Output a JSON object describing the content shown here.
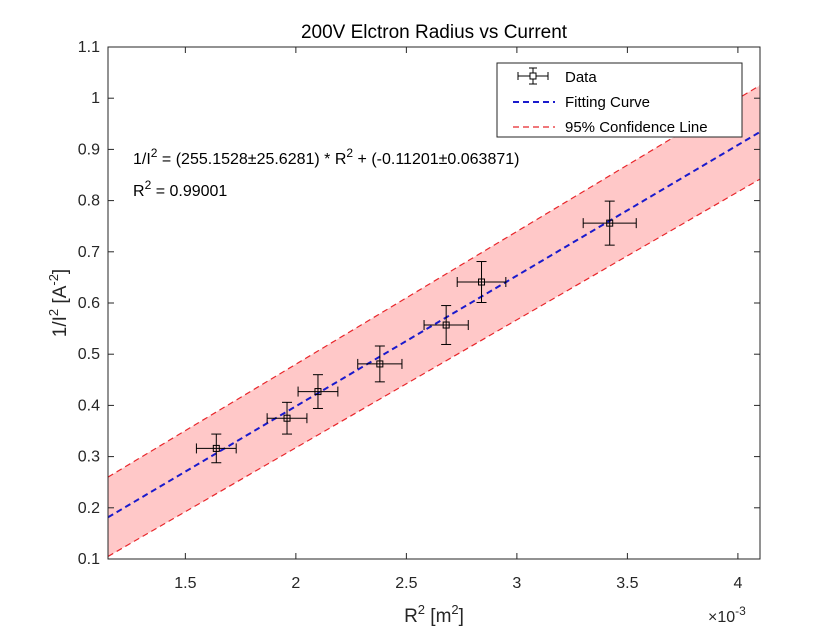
{
  "chart_data": {
    "type": "scatter",
    "title": "200V Elctron Radius vs Current",
    "xlabel": {
      "base": "R",
      "sup": "2",
      "unit_open": " [m",
      "unit_sup": "2",
      "unit_close": "]"
    },
    "ylabel": {
      "base": "1/I",
      "sup": "2",
      "unit_open": " [A",
      "unit_sup": "-2",
      "unit_close": "]"
    },
    "x_exponent_label": {
      "base": "×10",
      "sup": "-3"
    },
    "xlim": [
      1.15,
      4.1
    ],
    "ylim": [
      0.1,
      1.1
    ],
    "x_scale": 0.001,
    "xticks": [
      1.5,
      2,
      2.5,
      3,
      3.5,
      4
    ],
    "xtick_labels": [
      "1.5",
      "2",
      "2.5",
      "3",
      "3.5",
      "4"
    ],
    "yticks": [
      0.1,
      0.2,
      0.3,
      0.4,
      0.5,
      0.6,
      0.7,
      0.8,
      0.9,
      1,
      1.1
    ],
    "ytick_labels": [
      "0.1",
      "0.2",
      "0.3",
      "0.4",
      "0.5",
      "0.6",
      "0.7",
      "0.8",
      "0.9",
      "1",
      "1.1"
    ],
    "grid": false,
    "legend_position": "top-right",
    "series": [
      {
        "name": "Data",
        "kind": "errorbar",
        "color": "#000000",
        "marker": "square",
        "points": [
          {
            "x": 1.64,
            "y": 0.316,
            "xerr": 0.09,
            "yerr": 0.028
          },
          {
            "x": 1.96,
            "y": 0.375,
            "xerr": 0.09,
            "yerr": 0.031
          },
          {
            "x": 2.1,
            "y": 0.427,
            "xerr": 0.09,
            "yerr": 0.033
          },
          {
            "x": 2.38,
            "y": 0.481,
            "xerr": 0.1,
            "yerr": 0.035
          },
          {
            "x": 2.68,
            "y": 0.557,
            "xerr": 0.1,
            "yerr": 0.038
          },
          {
            "x": 2.84,
            "y": 0.641,
            "xerr": 0.11,
            "yerr": 0.04
          },
          {
            "x": 3.42,
            "y": 0.756,
            "xerr": 0.12,
            "yerr": 0.043
          }
        ]
      },
      {
        "name": "Fitting Curve",
        "kind": "line",
        "color": "#1a1acc",
        "dash": "dashed",
        "slope": 255.1528,
        "intercept": -0.11201
      },
      {
        "name": "95% Confidence Line",
        "kind": "band",
        "line_color": "#e8262b",
        "fill_color": "#ffc8c8",
        "dash": "dashed",
        "upper": [
          {
            "x": 1.15,
            "y": 0.26
          },
          {
            "x": 4.1,
            "y": 1.025
          }
        ],
        "lower": [
          {
            "x": 1.15,
            "y": 0.105
          },
          {
            "x": 4.1,
            "y": 0.842
          }
        ]
      }
    ],
    "annotations": {
      "equation": {
        "lhs_base": "1/I",
        "lhs_sup": "2",
        "mid": " = (255.1528±25.6281) * R",
        "mid_sup": "2",
        "tail": " + (-0.11201±0.063871)"
      },
      "r_squared": {
        "base": "R",
        "sup": "2",
        "tail": " = 0.99001"
      }
    }
  }
}
